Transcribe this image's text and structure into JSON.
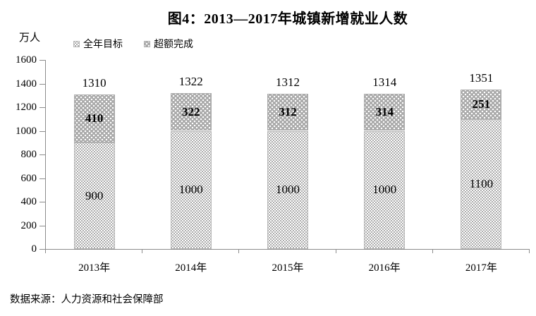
{
  "source": "数据来源：人力资源和社会保障部",
  "chart_data": {
    "type": "bar",
    "stacked": true,
    "title": "图4：2013—2017年城镇新增就业人数",
    "ylabel": "万人",
    "xlabel": "",
    "categories": [
      "2013年",
      "2014年",
      "2015年",
      "2016年",
      "2017年"
    ],
    "series": [
      {
        "name": "全年目标",
        "values": [
          900,
          1000,
          1000,
          1000,
          1100
        ]
      },
      {
        "name": "超额完成",
        "values": [
          410,
          322,
          312,
          314,
          251
        ]
      }
    ],
    "totals": [
      1310,
      1322,
      1312,
      1314,
      1351
    ],
    "ylim": [
      0,
      1600
    ],
    "ytick_step": 200,
    "grid": false,
    "legend_position": "top-left",
    "colors": {
      "target_fill": "#ffffff",
      "target_dot": "#8f8f8f",
      "over_fill": "#a9a9a9",
      "over_dot": "#ffffff",
      "axis": "#8c8c8c",
      "text": "#000000"
    }
  }
}
